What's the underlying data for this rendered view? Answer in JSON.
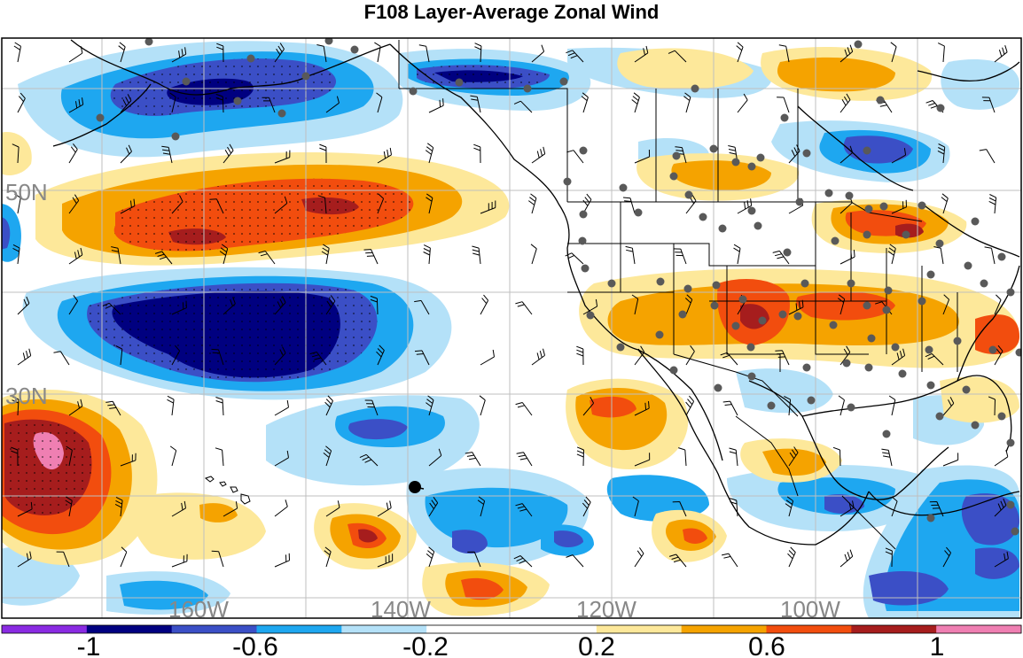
{
  "title": "F108 Layer-Average Zonal Wind",
  "lat_labels": [
    "50N",
    "30N"
  ],
  "lon_labels": [
    "160W",
    "140W",
    "120W",
    "100W"
  ],
  "colorbar": {
    "colors": [
      "#8a2be2",
      "#000080",
      "#3b4fc6",
      "#1ea7f0",
      "#b4e1f8",
      "#ffffff",
      "#ffffff",
      "#fde89a",
      "#f5a300",
      "#f24d0e",
      "#a61d1d",
      "#ef7fb2"
    ],
    "tick_labels": [
      "-1",
      "-0.6",
      "-0.2",
      "0.2",
      "0.6",
      "1"
    ]
  },
  "colors": {
    "land_outline": "#000000",
    "grid": "#bfbfbf",
    "station": "#595959",
    "marker": "#000000"
  }
}
